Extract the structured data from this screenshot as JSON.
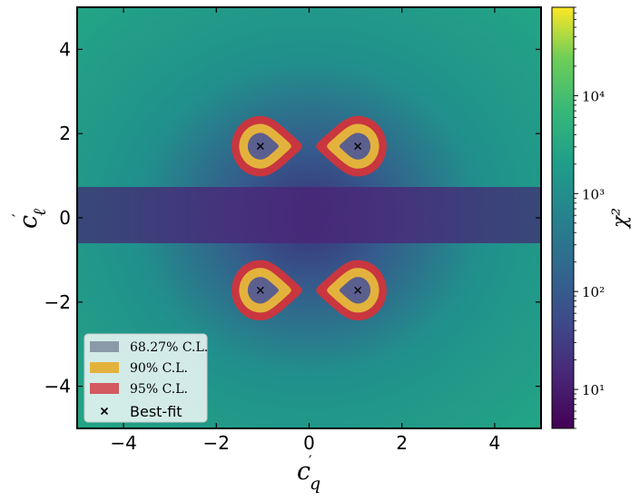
{
  "chart_data": {
    "type": "heatmap",
    "x_label": "c′_q",
    "y_label": "c′_ℓ",
    "xlim": [
      -5,
      5
    ],
    "ylim": [
      -5,
      5
    ],
    "x_ticks": [
      {
        "value": -4,
        "label": "−4"
      },
      {
        "value": -2,
        "label": "−2"
      },
      {
        "value": 0,
        "label": "0"
      },
      {
        "value": 2,
        "label": "2"
      },
      {
        "value": 4,
        "label": "4"
      }
    ],
    "y_ticks": [
      {
        "value": 4,
        "label": "4"
      },
      {
        "value": 2,
        "label": "2"
      },
      {
        "value": 0,
        "label": "0"
      },
      {
        "value": -2,
        "label": "−2"
      },
      {
        "value": -4,
        "label": "−4"
      }
    ],
    "colorbar": {
      "label": "χ²",
      "scale": "log",
      "range": [
        4,
        80000
      ],
      "colormap": "viridis",
      "ticks": [
        {
          "value": 10,
          "label": "10¹"
        },
        {
          "value": 100,
          "label": "10²"
        },
        {
          "value": 1000,
          "label": "10³"
        },
        {
          "value": 10000,
          "label": "10⁴"
        }
      ]
    },
    "best_fit_points": [
      {
        "x": -1.05,
        "y": 1.7
      },
      {
        "x": 1.05,
        "y": 1.7
      },
      {
        "x": -1.05,
        "y": -1.72
      },
      {
        "x": 1.05,
        "y": -1.72
      }
    ],
    "regions": [
      {
        "name": "68.27% C.L.",
        "color": "#8fa0ad"
      },
      {
        "name": "90% C.L.",
        "color": "#e3b23c"
      },
      {
        "name": "95% C.L.",
        "color": "#c9363f"
      }
    ],
    "legend": {
      "placement": "lower-left",
      "entries": [
        {
          "label": "68.27% C.L.",
          "color": "#8a9aa8",
          "kind": "patch"
        },
        {
          "label": "90% C.L.",
          "color": "#e3b23c",
          "kind": "patch"
        },
        {
          "label": "95% C.L.",
          "color": "#d35a5e",
          "kind": "patch"
        },
        {
          "label": "Best-fit",
          "color": "#000000",
          "kind": "marker"
        }
      ]
    },
    "grid": false
  }
}
